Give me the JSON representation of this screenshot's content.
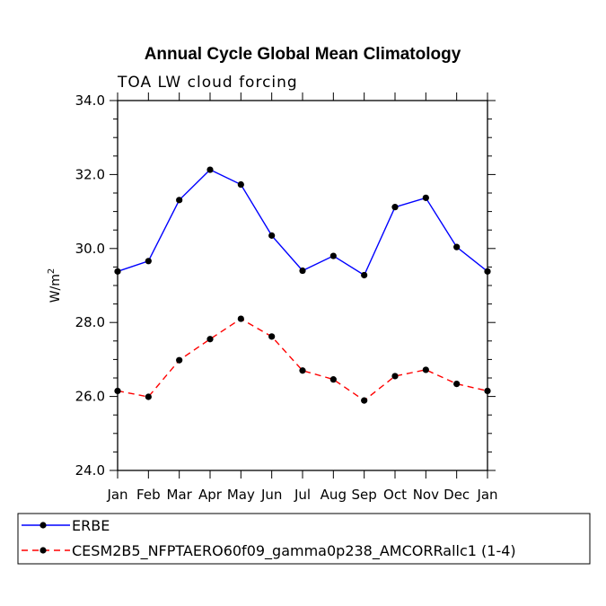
{
  "chart_data": {
    "type": "line",
    "title": "Annual Cycle Global Mean Climatology",
    "subtitle": "TOA LW cloud forcing",
    "ylabel": "W/m",
    "ylabel_superscript": "2",
    "xlabel": "",
    "categories": [
      "Jan",
      "Feb",
      "Mar",
      "Apr",
      "May",
      "Jun",
      "Jul",
      "Aug",
      "Sep",
      "Oct",
      "Nov",
      "Dec",
      "Jan"
    ],
    "ylim": [
      24.0,
      34.0
    ],
    "yticks": [
      "24.0",
      "26.0",
      "28.0",
      "30.0",
      "32.0",
      "34.0"
    ],
    "series": [
      {
        "name": "ERBE",
        "color": "#0000ff",
        "dash": "solid",
        "values": [
          29.38,
          29.66,
          31.31,
          32.13,
          31.73,
          30.35,
          29.4,
          29.8,
          29.28,
          31.12,
          31.37,
          30.04,
          29.38
        ]
      },
      {
        "name": "CESM2B5_NFPTAERO60f09_gamma0p238_AMCORRallc1 (1-4)",
        "color": "#ff0000",
        "dash": "dashed",
        "values": [
          26.15,
          25.99,
          26.98,
          27.55,
          28.1,
          27.62,
          26.7,
          26.46,
          25.89,
          26.55,
          26.72,
          26.34,
          26.15
        ]
      }
    ],
    "legend_position": "bottom-left"
  }
}
